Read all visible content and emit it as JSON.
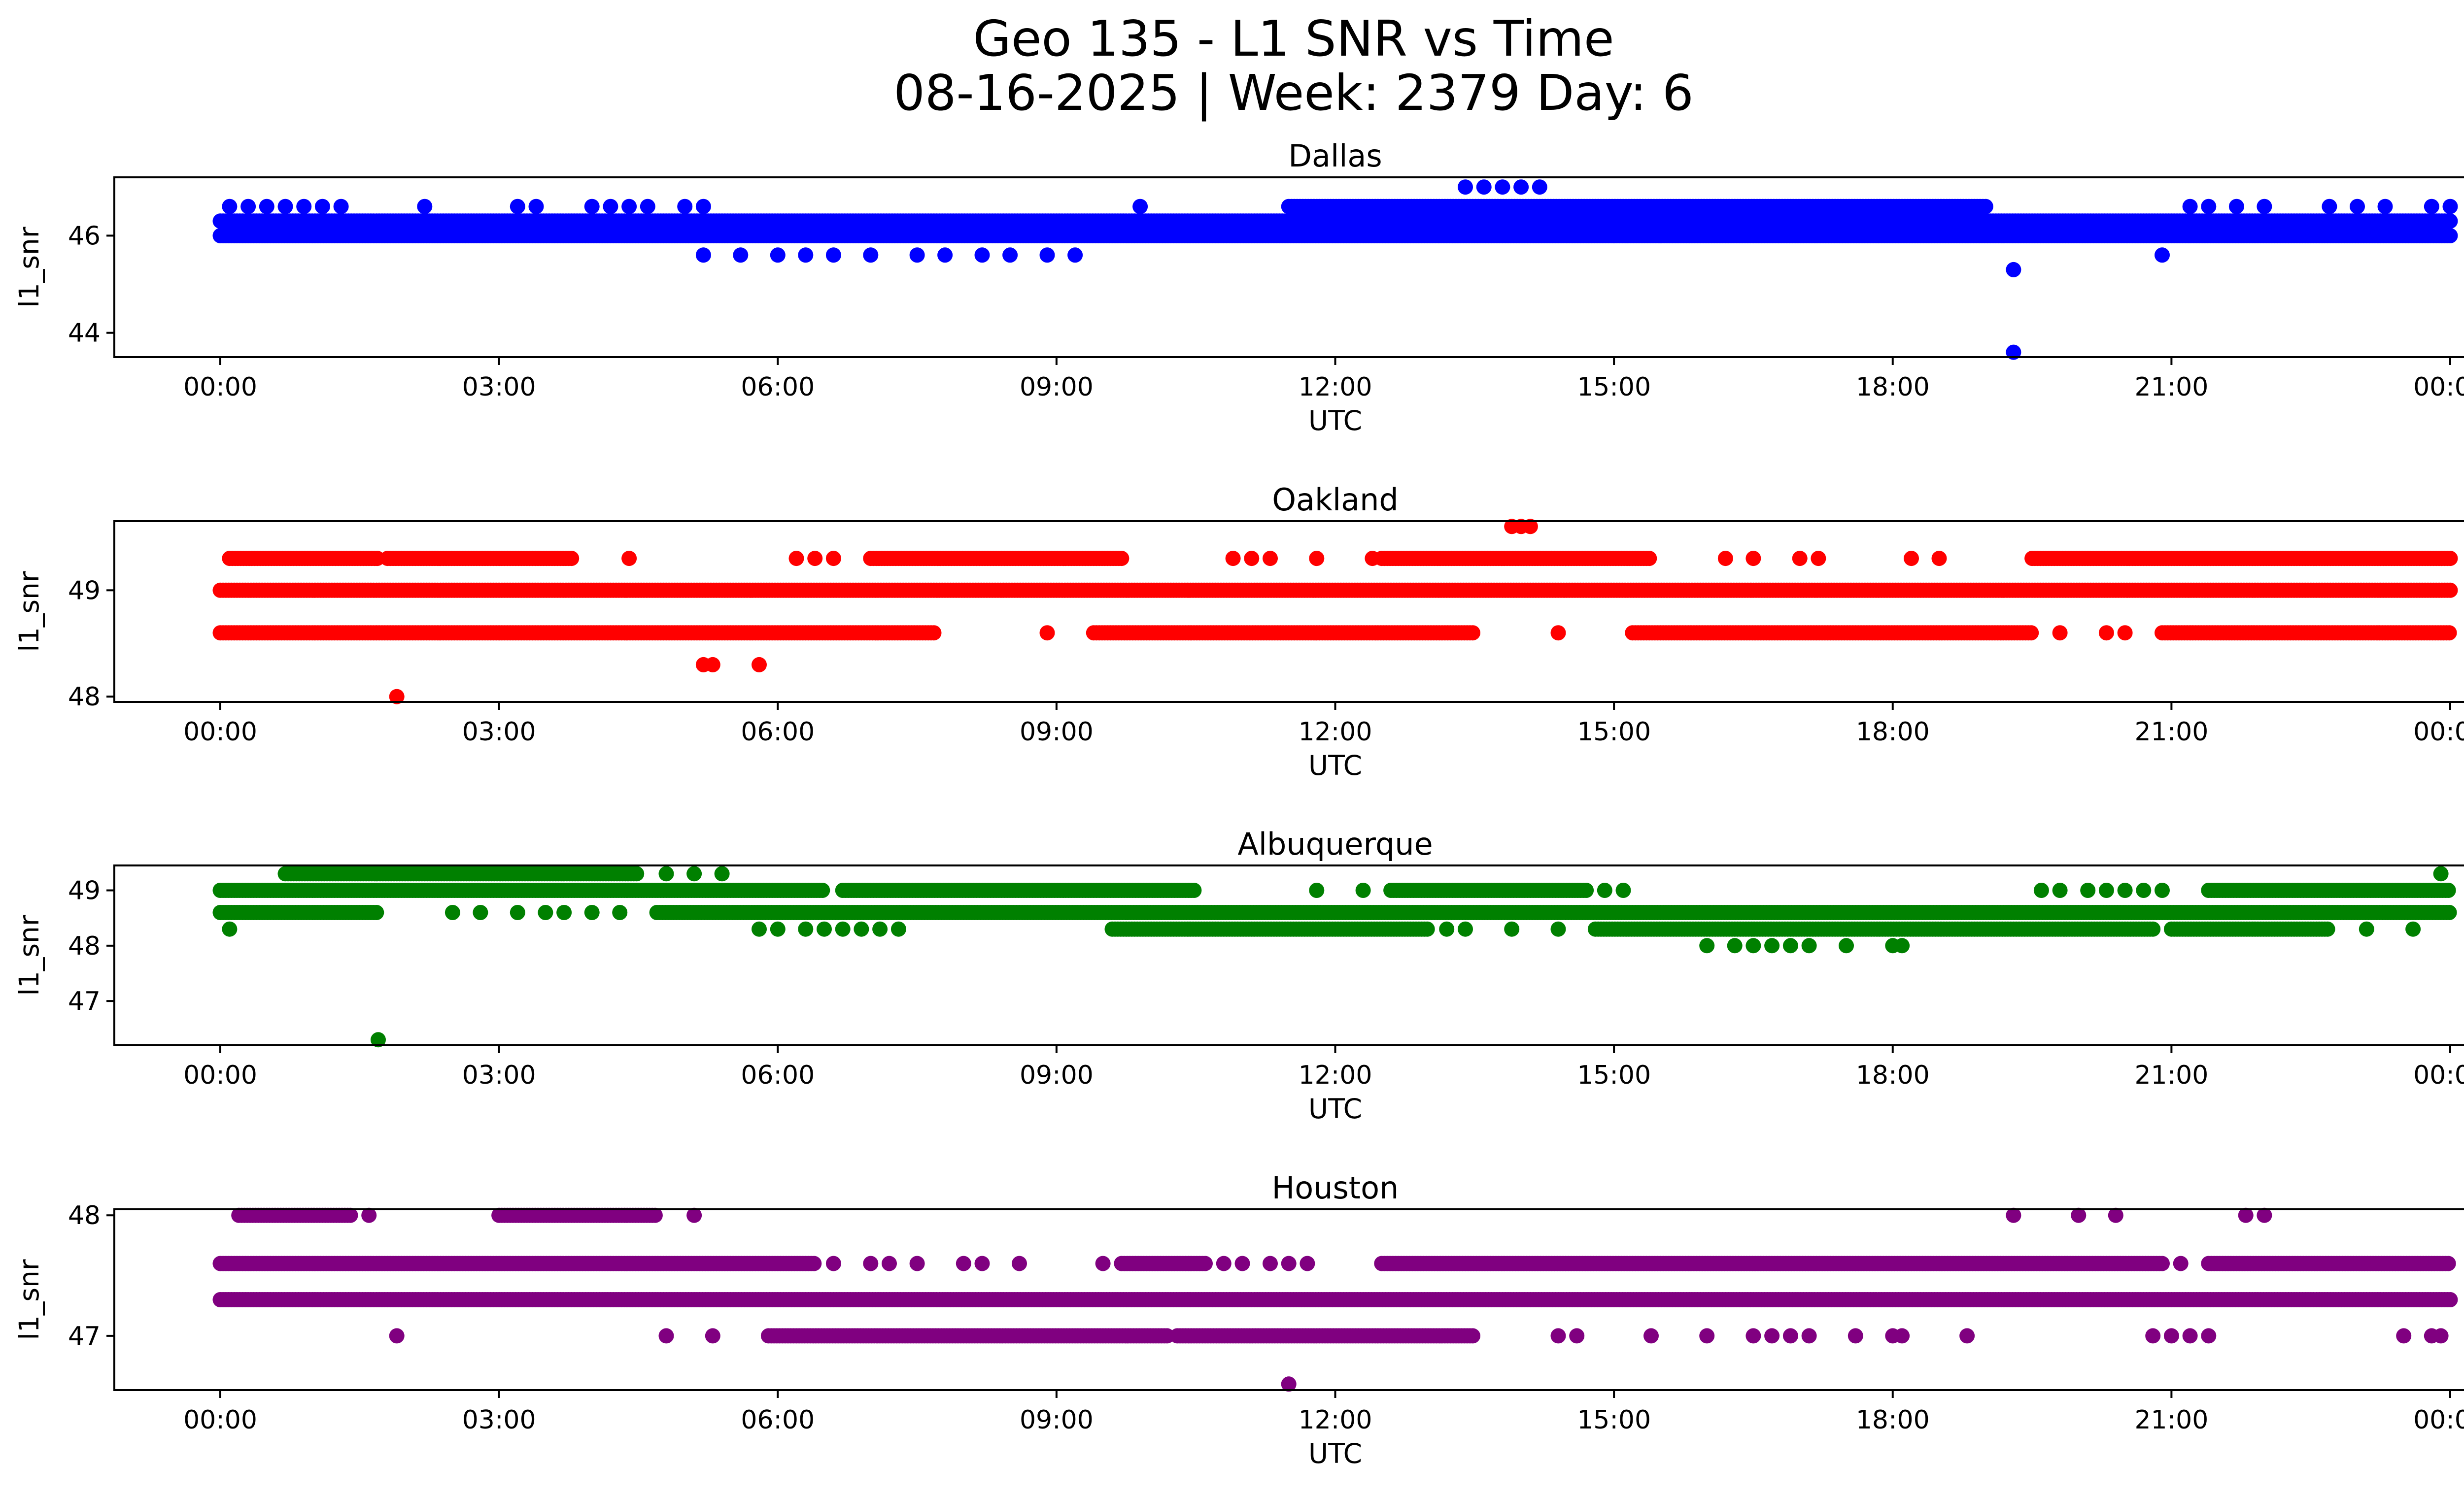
{
  "title": {
    "line1": "Geo 135 - L1 SNR vs Time",
    "line2": "08-16-2025 | Week: 2379 Day: 6"
  },
  "chart_data": [
    {
      "type": "scatter",
      "title": "Dallas",
      "color": "#0000ff",
      "xlabel": "UTC",
      "ylabel": "l1_snr",
      "xlim": [
        0,
        24
      ],
      "ylim": [
        43.5,
        47.2
      ],
      "x_ticks": [
        0,
        3,
        6,
        9,
        12,
        15,
        18,
        21,
        24
      ],
      "x_tick_labels": [
        "00:00",
        "03:00",
        "06:00",
        "09:00",
        "12:00",
        "15:00",
        "18:00",
        "21:00",
        "00:00"
      ],
      "y_ticks": [
        44,
        46
      ],
      "y_tick_labels": [
        "44",
        "46"
      ],
      "bands": [
        {
          "y": 46.0,
          "start": 0.0,
          "end": 24.0
        },
        {
          "y": 46.3,
          "start": 0.0,
          "end": 24.0
        },
        {
          "y": 46.6,
          "start": 11.5,
          "end": 19.0
        },
        {
          "y": 46.6,
          "x": [
            0.1,
            0.3,
            0.5,
            0.7,
            0.9,
            1.1,
            1.3,
            2.2,
            3.2,
            3.4,
            4.0,
            4.2,
            4.4,
            4.6,
            5.0,
            5.2,
            9.9,
            21.2,
            21.4,
            21.7,
            22.0,
            22.7,
            23.0,
            23.3,
            23.8,
            24.0
          ]
        },
        {
          "y": 45.6,
          "x": [
            5.2,
            5.6,
            6.0,
            6.3,
            6.6,
            7.0,
            7.5,
            7.8,
            8.2,
            8.5,
            8.9,
            9.2,
            20.9
          ]
        },
        {
          "y": 46.0,
          "x": [
            15.0,
            15.5
          ]
        },
        {
          "y": 47.0,
          "x": [
            13.4,
            13.6,
            13.8,
            14.0,
            14.2
          ]
        }
      ],
      "points": [
        {
          "x": 19.3,
          "y": 45.3
        },
        {
          "x": 19.3,
          "y": 43.6
        }
      ]
    },
    {
      "type": "scatter",
      "title": "Oakland",
      "color": "#ff0000",
      "xlabel": "UTC",
      "ylabel": "l1_snr",
      "xlim": [
        0,
        24
      ],
      "ylim": [
        47.95,
        49.65
      ],
      "x_ticks": [
        0,
        3,
        6,
        9,
        12,
        15,
        18,
        21,
        24
      ],
      "x_tick_labels": [
        "00:00",
        "03:00",
        "06:00",
        "09:00",
        "12:00",
        "15:00",
        "18:00",
        "21:00",
        "00:00"
      ],
      "y_ticks": [
        48,
        49
      ],
      "y_tick_labels": [
        "48",
        "49"
      ],
      "bands": [
        {
          "y": 49.0,
          "start": 0.0,
          "end": 24.0
        },
        {
          "y": 49.3,
          "start": 0.1,
          "end": 1.7
        },
        {
          "y": 49.3,
          "start": 1.8,
          "end": 3.8
        },
        {
          "y": 49.3,
          "start": 7.0,
          "end": 9.7
        },
        {
          "y": 49.3,
          "start": 12.5,
          "end": 15.4
        },
        {
          "y": 49.3,
          "start": 19.5,
          "end": 24.0
        },
        {
          "y": 49.3,
          "x": [
            4.4,
            6.2,
            6.4,
            6.6,
            10.9,
            11.1,
            11.3,
            11.8,
            12.4,
            16.2,
            16.5,
            17.0,
            17.2,
            18.2,
            18.5
          ]
        },
        {
          "y": 48.6,
          "start": 0.0,
          "end": 7.7
        },
        {
          "y": 48.6,
          "start": 9.4,
          "end": 13.5
        },
        {
          "y": 48.6,
          "start": 15.2,
          "end": 19.5
        },
        {
          "y": 48.6,
          "start": 20.9,
          "end": 24.0
        },
        {
          "y": 48.6,
          "x": [
            8.9,
            14.4,
            19.8,
            20.3,
            20.5
          ]
        },
        {
          "y": 48.3,
          "x": [
            5.2,
            5.3,
            5.8
          ]
        },
        {
          "y": 49.6,
          "x": [
            13.9,
            14.0,
            14.1
          ]
        }
      ],
      "points": [
        {
          "x": 1.9,
          "y": 48.0
        }
      ]
    },
    {
      "type": "scatter",
      "title": "Albuquerque",
      "color": "#008000",
      "xlabel": "UTC",
      "ylabel": "l1_snr",
      "xlim": [
        0,
        24
      ],
      "ylim": [
        46.2,
        49.45
      ],
      "x_ticks": [
        0,
        3,
        6,
        9,
        12,
        15,
        18,
        21,
        24
      ],
      "x_tick_labels": [
        "00:00",
        "03:00",
        "06:00",
        "09:00",
        "12:00",
        "15:00",
        "18:00",
        "21:00",
        "00:00"
      ],
      "y_ticks": [
        47,
        48,
        49
      ],
      "y_tick_labels": [
        "47",
        "48",
        "49"
      ],
      "bands": [
        {
          "y": 49.0,
          "start": 0.0,
          "end": 6.5
        },
        {
          "y": 49.0,
          "start": 6.7,
          "end": 10.5
        },
        {
          "y": 49.0,
          "start": 12.6,
          "end": 14.7
        },
        {
          "y": 49.0,
          "start": 21.4,
          "end": 24.0
        },
        {
          "y": 49.0,
          "x": [
            11.8,
            12.3,
            14.9,
            15.1,
            19.6,
            19.8,
            20.1,
            20.3,
            20.5,
            20.7,
            20.9
          ]
        },
        {
          "y": 49.3,
          "start": 0.7,
          "end": 4.5
        },
        {
          "y": 49.3,
          "x": [
            4.8,
            5.1,
            5.4,
            23.9
          ]
        },
        {
          "y": 48.6,
          "start": 0.0,
          "end": 1.7
        },
        {
          "y": 48.6,
          "start": 4.7,
          "end": 24.0
        },
        {
          "y": 48.6,
          "x": [
            2.5,
            2.8,
            3.2,
            3.5,
            3.7,
            4.0,
            4.3
          ]
        },
        {
          "y": 48.3,
          "start": 9.6,
          "end": 13.0
        },
        {
          "y": 48.3,
          "start": 14.8,
          "end": 20.8
        },
        {
          "y": 48.3,
          "start": 21.0,
          "end": 22.7
        },
        {
          "y": 48.3,
          "x": [
            0.1,
            5.8,
            6.0,
            6.3,
            6.5,
            6.7,
            6.9,
            7.1,
            7.3,
            13.2,
            13.4,
            13.9,
            14.4,
            23.1,
            23.6
          ]
        },
        {
          "y": 48.0,
          "x": [
            16.0,
            16.3,
            16.5,
            16.7,
            16.9,
            17.1,
            17.5,
            18.0,
            18.1
          ]
        }
      ],
      "points": [
        {
          "x": 1.7,
          "y": 46.3
        }
      ]
    },
    {
      "type": "scatter",
      "title": "Houston",
      "color": "#800080",
      "xlabel": "UTC",
      "ylabel": "l1_snr",
      "xlim": [
        0,
        24
      ],
      "ylim": [
        46.55,
        48.05
      ],
      "x_ticks": [
        0,
        3,
        6,
        9,
        12,
        15,
        18,
        21,
        24
      ],
      "x_tick_labels": [
        "00:00",
        "03:00",
        "06:00",
        "09:00",
        "12:00",
        "15:00",
        "18:00",
        "21:00",
        "00:00"
      ],
      "y_ticks": [
        47,
        48
      ],
      "y_tick_labels": [
        "47",
        "48"
      ],
      "bands": [
        {
          "y": 47.6,
          "start": 0.0,
          "end": 6.4
        },
        {
          "y": 47.6,
          "start": 12.5,
          "end": 20.9
        },
        {
          "y": 47.6,
          "start": 21.4,
          "end": 24.0
        },
        {
          "y": 47.6,
          "start": 9.7,
          "end": 10.6
        },
        {
          "y": 47.6,
          "x": [
            6.6,
            7.0,
            7.2,
            7.5,
            8.0,
            8.2,
            8.6,
            9.5,
            10.8,
            11.0,
            11.3,
            11.5,
            11.7,
            21.1
          ]
        },
        {
          "y": 47.3,
          "start": 0.0,
          "end": 24.0
        },
        {
          "y": 48.0,
          "start": 0.2,
          "end": 1.4
        },
        {
          "y": 48.0,
          "start": 3.0,
          "end": 4.7
        },
        {
          "y": 48.0,
          "x": [
            1.6,
            5.1,
            19.3,
            20.0,
            20.4,
            21.8,
            22.0
          ]
        },
        {
          "y": 47.0,
          "start": 5.9,
          "end": 10.2
        },
        {
          "y": 47.0,
          "start": 10.3,
          "end": 13.5
        },
        {
          "y": 47.0,
          "x": [
            1.9,
            4.8,
            5.3,
            14.4,
            14.6,
            15.4,
            16.0,
            16.5,
            16.7,
            16.9,
            17.1,
            17.6,
            18.0,
            18.1,
            18.8,
            20.8,
            21.0,
            21.2,
            21.4,
            23.5,
            23.8,
            23.9
          ]
        }
      ],
      "points": [
        {
          "x": 11.5,
          "y": 46.6
        }
      ]
    }
  ]
}
